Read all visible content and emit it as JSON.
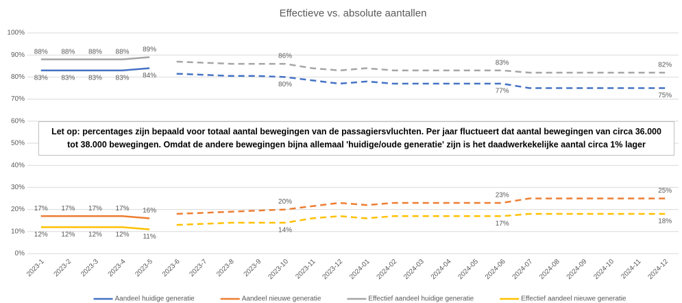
{
  "chart_data": {
    "type": "line",
    "title": "Effectieve vs. absolute aantallen",
    "categories": [
      "2023-1",
      "2023-2",
      "2023-3",
      "2023-4",
      "2023-5",
      "2023-6",
      "2023-7",
      "2023-8",
      "2023-9",
      "2023-10",
      "2023-11",
      "2023-12",
      "2024-01",
      "2024-02",
      "2024-03",
      "2024-04",
      "2024-05",
      "2024-06",
      "2024-07",
      "2024-08",
      "2024-09",
      "2024-10",
      "2024-11",
      "2024-12"
    ],
    "dashed_from": "2023-6",
    "ylim": [
      0,
      100
    ],
    "yticks": [
      {
        "value": 0,
        "label": "0%"
      },
      {
        "value": 10,
        "label": "10%"
      },
      {
        "value": 20,
        "label": "20%"
      },
      {
        "value": 30,
        "label": "30%"
      },
      {
        "value": 40,
        "label": "40%"
      },
      {
        "value": 50,
        "label": "50%"
      },
      {
        "value": 60,
        "label": "60%"
      },
      {
        "value": 70,
        "label": "70%"
      },
      {
        "value": 80,
        "label": "80%"
      },
      {
        "value": 90,
        "label": "90%"
      },
      {
        "value": 100,
        "label": "100%"
      }
    ],
    "grid": true,
    "annotation": "Let op: percentages zijn bepaald voor totaal aantal bewegingen van de passagiersvluchten. Per jaar fluctueert dat aantal bewegingen van circa 36.000 tot 38.000 bewegingen. Omdat de andere bewegingen bijna allemaal 'huidige/oude generatie' zijn is het daadwerkekelijke aantal circa 1% lager",
    "legend": "bottom",
    "series": [
      {
        "name": "Aandeel huidige generatie",
        "color": "#4472c4",
        "label_position": "below",
        "values": [
          83,
          83,
          83,
          83,
          84,
          81.5,
          81,
          80.5,
          80.5,
          80,
          78.5,
          77,
          78,
          77,
          77,
          77,
          77,
          77,
          75,
          75,
          75,
          75,
          75,
          75
        ],
        "value_labels": [
          "83%",
          "83%",
          "83%",
          "83%",
          "84%",
          null,
          null,
          null,
          null,
          "80%",
          null,
          null,
          null,
          null,
          null,
          null,
          null,
          "77%",
          null,
          null,
          null,
          null,
          null,
          "75%"
        ]
      },
      {
        "name": "Aandeel nieuwe generatie",
        "color": "#ed7d31",
        "label_position": "above",
        "values": [
          17,
          17,
          17,
          17,
          16,
          18,
          18.5,
          19,
          19.5,
          20,
          21.5,
          23,
          22,
          23,
          23,
          23,
          23,
          23,
          25,
          25,
          25,
          25,
          25,
          25
        ],
        "value_labels": [
          "17%",
          "17%",
          "17%",
          "17%",
          "16%",
          null,
          null,
          null,
          null,
          "20%",
          null,
          null,
          null,
          null,
          null,
          null,
          null,
          "23%",
          null,
          null,
          null,
          null,
          null,
          "25%"
        ]
      },
      {
        "name": "Effectief aandeel huidige generatie",
        "color": "#a5a5a5",
        "label_position": "above",
        "values": [
          88,
          88,
          88,
          88,
          89,
          87,
          86.5,
          86,
          86,
          86,
          84,
          83,
          84,
          83,
          83,
          83,
          83,
          83,
          82,
          82,
          82,
          82,
          82,
          82
        ],
        "value_labels": [
          "88%",
          "88%",
          "88%",
          "88%",
          "89%",
          null,
          null,
          null,
          null,
          "86%",
          null,
          null,
          null,
          null,
          null,
          null,
          null,
          "83%",
          null,
          null,
          null,
          null,
          null,
          "82%"
        ]
      },
      {
        "name": "Effectief aandeel nieuwe generatie",
        "color": "#ffc000",
        "label_position": "below",
        "values": [
          12,
          12,
          12,
          12,
          11,
          13,
          13.5,
          14,
          14,
          14,
          16,
          17,
          16,
          17,
          17,
          17,
          17,
          17,
          18,
          18,
          18,
          18,
          18,
          18
        ],
        "value_labels": [
          "12%",
          "12%",
          "12%",
          "12%",
          "11%",
          null,
          null,
          null,
          null,
          "14%",
          null,
          null,
          null,
          null,
          null,
          null,
          null,
          "17%",
          null,
          null,
          null,
          null,
          null,
          "18%"
        ]
      }
    ]
  }
}
